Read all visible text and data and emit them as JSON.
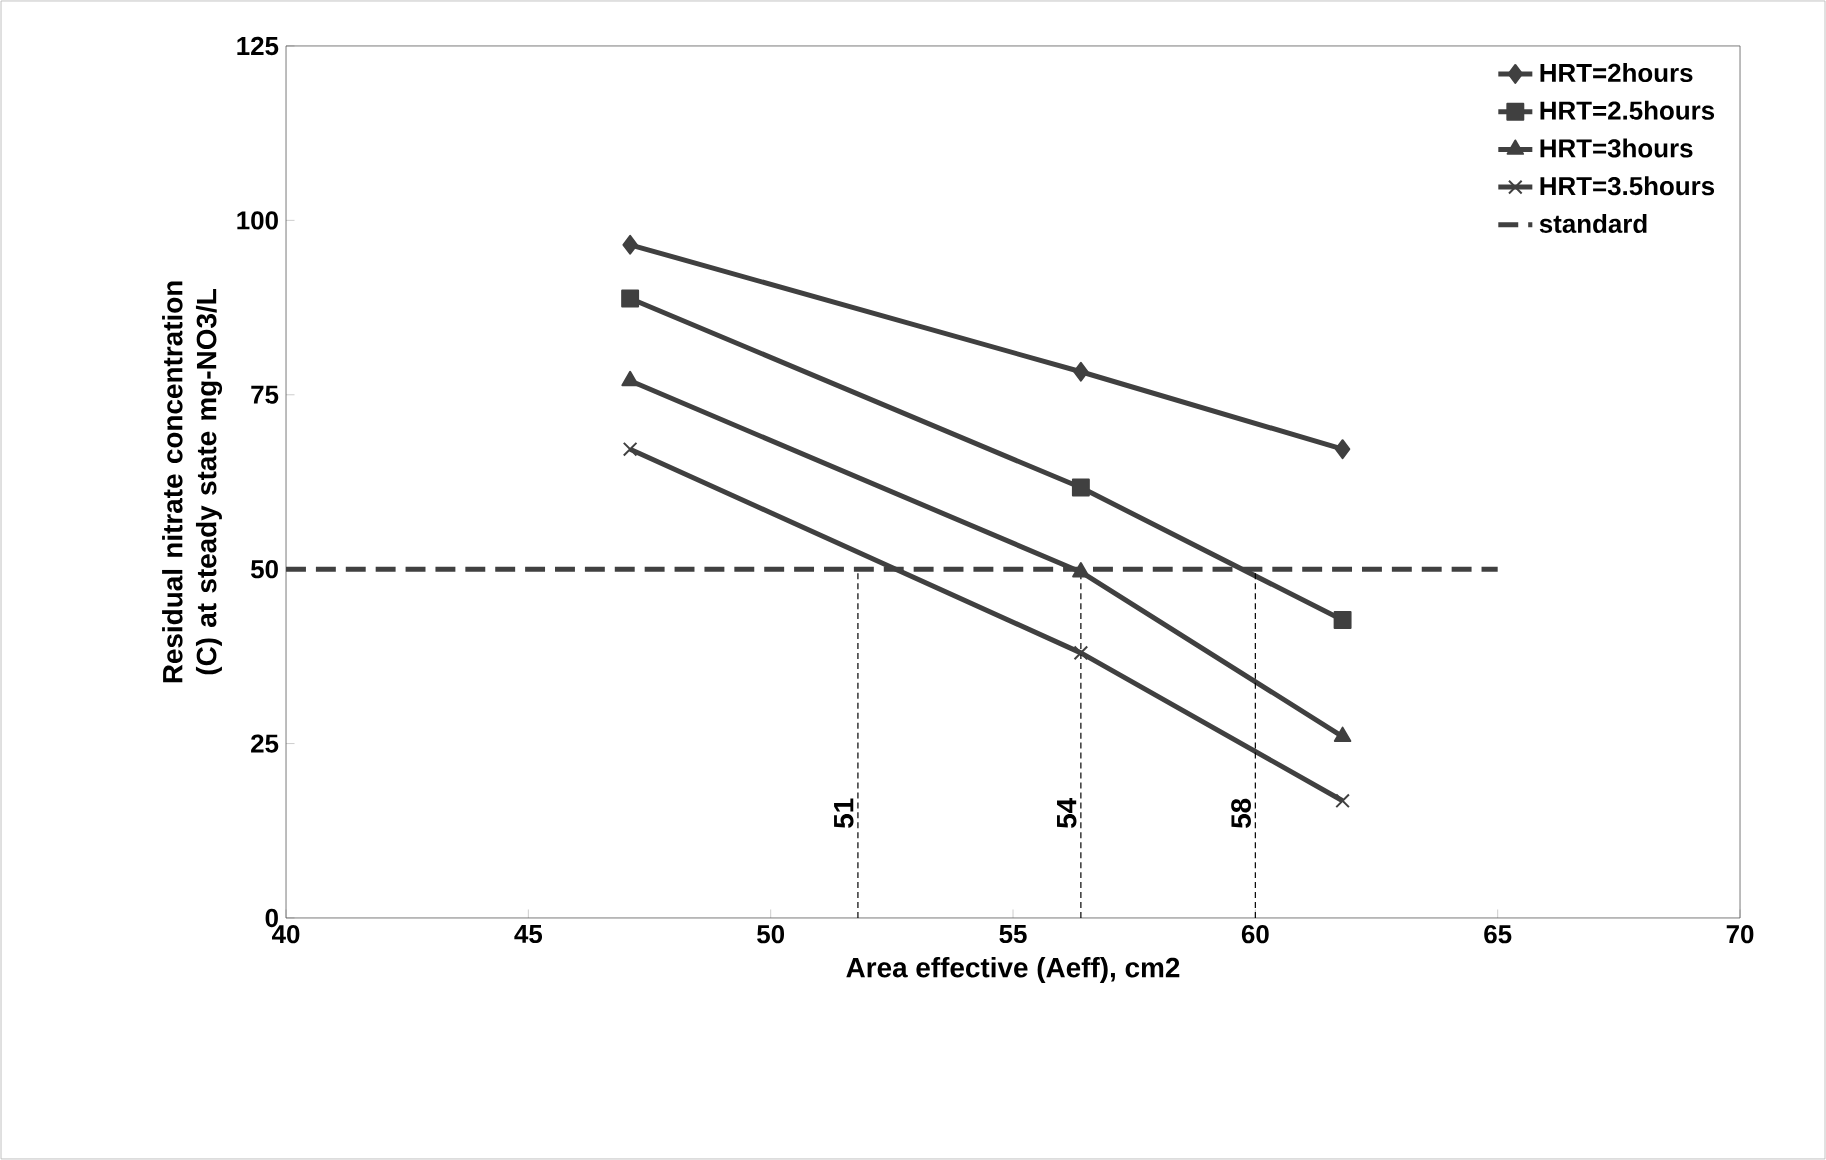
{
  "chart_data": {
    "type": "line",
    "xlabel": "Area effective  (Aeff), cm2",
    "ylabel": "Residual nitrate  concentration (C) at steady state mg-NO3/L",
    "xlim": [
      40,
      70
    ],
    "ylim": [
      0,
      125
    ],
    "xticks": [
      40,
      45,
      50,
      55,
      60,
      65,
      70
    ],
    "yticks": [
      0,
      25,
      50,
      75,
      100,
      125
    ],
    "legend": "top right",
    "grid": false,
    "series": [
      {
        "name": "HRT=2hours",
        "color": "#404040",
        "marker": "diamond",
        "line_style": "solid",
        "x": [
          47.1,
          56.4,
          61.8
        ],
        "values": [
          96.5,
          78.3,
          67.2
        ]
      },
      {
        "name": "HRT=2.5hours",
        "color": "#404040",
        "marker": "square",
        "line_style": "solid",
        "x": [
          47.1,
          56.4,
          61.8
        ],
        "values": [
          88.8,
          61.7,
          42.7
        ]
      },
      {
        "name": "HRT=3hours",
        "color": "#404040",
        "marker": "triangle",
        "line_style": "solid",
        "x": [
          47.1,
          56.4,
          61.8
        ],
        "values": [
          77,
          49.6,
          26
        ]
      },
      {
        "name": "HRT=3.5hours",
        "color": "#404040",
        "marker": "cross",
        "line_style": "solid",
        "x": [
          47.1,
          56.4,
          61.8
        ],
        "values": [
          67.2,
          38,
          16.8
        ]
      },
      {
        "name": "standard",
        "color": "#404040",
        "marker": "none",
        "line_style": "dashed",
        "x": [
          40,
          65
        ],
        "values": [
          50,
          50
        ]
      },
      {
        "color": "#000000",
        "marker": "none",
        "line_style": "dashed",
        "x": [
          51.8,
          51.8
        ],
        "values": [
          0,
          50
        ]
      },
      {
        "color": "#000000",
        "marker": "none",
        "line_style": "dashed",
        "x": [
          56.4,
          56.4
        ],
        "values": [
          0,
          50
        ]
      },
      {
        "color": "#000000",
        "marker": "none",
        "line_style": "dashed",
        "x": [
          60,
          60
        ],
        "values": [
          0,
          50
        ]
      }
    ],
    "annotations": [
      {
        "text": "51",
        "x": 51.8,
        "y": 15
      },
      {
        "text": "54",
        "x": 56.4,
        "y": 15
      },
      {
        "text": "58",
        "x": 60,
        "y": 15
      }
    ]
  }
}
